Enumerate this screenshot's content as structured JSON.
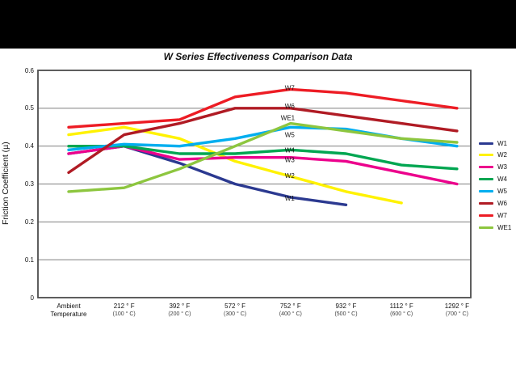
{
  "frame": {
    "top_bar_color": "#000000",
    "sheet_color": "#ffffff"
  },
  "chart_data": {
    "type": "line",
    "title": "W Series Effectiveness Comparison Data",
    "ylabel": "Friction Coefficient (µ)",
    "xlabel": "",
    "ylim": [
      0,
      0.6
    ],
    "ytick_step": 0.1,
    "grid": true,
    "legend_position": "right",
    "yticks": [
      {
        "value": 0,
        "label": "0"
      },
      {
        "value": 0.1,
        "label": "0.1"
      },
      {
        "value": 0.2,
        "label": "0.2"
      },
      {
        "value": 0.3,
        "label": "0.3"
      },
      {
        "value": 0.4,
        "label": "0.4"
      },
      {
        "value": 0.5,
        "label": "0.5"
      },
      {
        "value": 0.6,
        "label": "0.6"
      }
    ],
    "categories": [
      {
        "line1": "Ambient",
        "line2": "Temperature"
      },
      {
        "line1": "212 ° F",
        "line2": "(100 ° C)"
      },
      {
        "line1": "392 ° F",
        "line2": "(200 ° C)"
      },
      {
        "line1": "572 ° F",
        "line2": "(300 ° C)"
      },
      {
        "line1": "752 ° F",
        "line2": "(400 ° C)"
      },
      {
        "line1": "932 ° F",
        "line2": "(500 ° C)"
      },
      {
        "line1": "1112 ° F",
        "line2": "(600 ° C)"
      },
      {
        "line1": "1292 ° F",
        "line2": "(700 ° C)"
      }
    ],
    "series": [
      {
        "name": "W1",
        "color": "#2b3990",
        "values": [
          0.38,
          0.4,
          0.355,
          0.3,
          0.265,
          0.245,
          null,
          null
        ]
      },
      {
        "name": "W2",
        "color": "#fff200",
        "values": [
          0.43,
          0.45,
          0.42,
          0.36,
          0.32,
          0.28,
          0.25,
          null
        ]
      },
      {
        "name": "W3",
        "color": "#ec008c",
        "values": [
          0.38,
          0.4,
          0.365,
          0.37,
          0.37,
          0.36,
          0.33,
          0.3
        ]
      },
      {
        "name": "W4",
        "color": "#00a651",
        "values": [
          0.4,
          0.4,
          0.38,
          0.38,
          0.39,
          0.38,
          0.35,
          0.34
        ]
      },
      {
        "name": "W5",
        "color": "#00aeef",
        "values": [
          0.39,
          0.405,
          0.4,
          0.42,
          0.45,
          0.445,
          0.42,
          0.4
        ]
      },
      {
        "name": "W6",
        "color": "#b01b24",
        "values": [
          0.33,
          0.43,
          0.46,
          0.5,
          0.5,
          0.48,
          0.46,
          0.44
        ]
      },
      {
        "name": "W7",
        "color": "#ed1c24",
        "values": [
          0.45,
          0.46,
          0.47,
          0.53,
          0.55,
          0.54,
          0.52,
          0.5
        ]
      },
      {
        "name": "WE1",
        "color": "#8dc63f",
        "values": [
          0.28,
          0.29,
          0.34,
          0.4,
          0.46,
          0.44,
          0.42,
          0.41
        ]
      }
    ],
    "inline_series_labels": [
      "W7",
      "W6",
      "WE1",
      "W5",
      "W4",
      "W3",
      "W2",
      "W1"
    ],
    "legend_entries": [
      "W1",
      "W2",
      "W3",
      "W4",
      "W5",
      "W6",
      "W7",
      "WE1"
    ]
  }
}
